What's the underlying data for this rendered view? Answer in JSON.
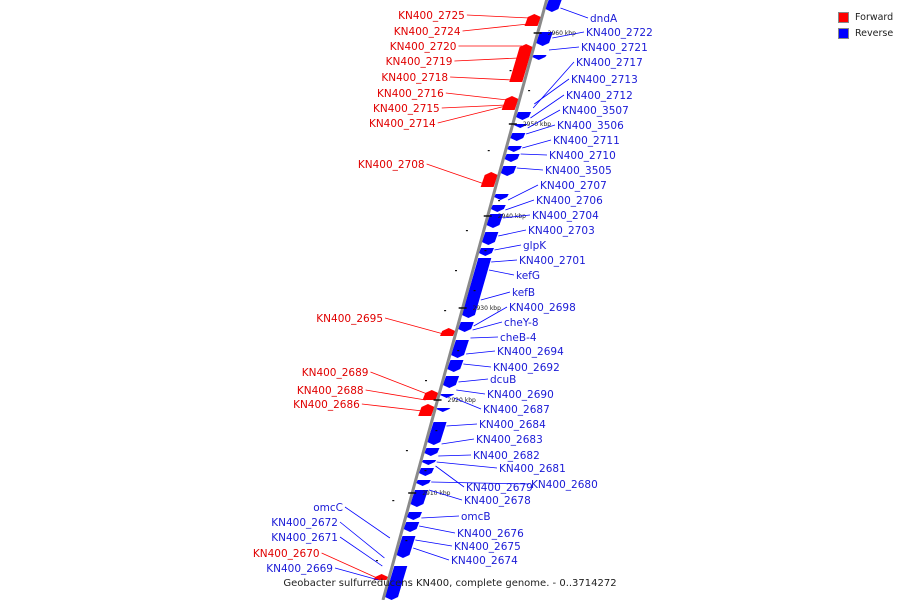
{
  "legend": {
    "forward": {
      "label": "Forward",
      "color": "#ff0000"
    },
    "reverse": {
      "label": "Reverse",
      "color": "#0000ff"
    }
  },
  "caption": "Geobacter sulfurreducens KN400, complete genome. - 0..3714272",
  "scale_ticks": [
    "2960 kbp",
    "2950 kbp",
    "2940 kbp",
    "2930 kbp",
    "2920 kbp",
    "2910 kbp"
  ],
  "forward_labels": [
    "KN400_2725",
    "KN400_2724",
    "KN400_2720",
    "KN400_2719",
    "KN400_2718",
    "KN400_2716",
    "KN400_2715",
    "KN400_2714",
    "KN400_2708",
    "KN400_2695",
    "KN400_2689",
    "KN400_2688",
    "KN400_2686",
    "KN400_2670"
  ],
  "reverse_labels_right": [
    "dndA",
    "KN400_2722",
    "KN400_2721",
    "KN400_2717",
    "KN400_2713",
    "KN400_2712",
    "KN400_3507",
    "KN400_3506",
    "KN400_2711",
    "KN400_2710",
    "KN400_3505",
    "KN400_2707",
    "KN400_2706",
    "KN400_2704",
    "KN400_2703",
    "glpK",
    "KN400_2701",
    "kefG",
    "kefB",
    "KN400_2698",
    "cheY-8",
    "cheB-4",
    "KN400_2694",
    "KN400_2692",
    "dcuB",
    "KN400_2690",
    "KN400_2687",
    "KN400_2684",
    "KN400_2683",
    "KN400_2682",
    "KN400_2681",
    "KN400_2680",
    "KN400_2679",
    "KN400_2678",
    "omcB",
    "KN400_2676",
    "KN400_2675",
    "KN400_2674"
  ],
  "reverse_labels_left": [
    "omcC",
    "KN400_2672",
    "KN400_2671",
    "KN400_2669"
  ]
}
